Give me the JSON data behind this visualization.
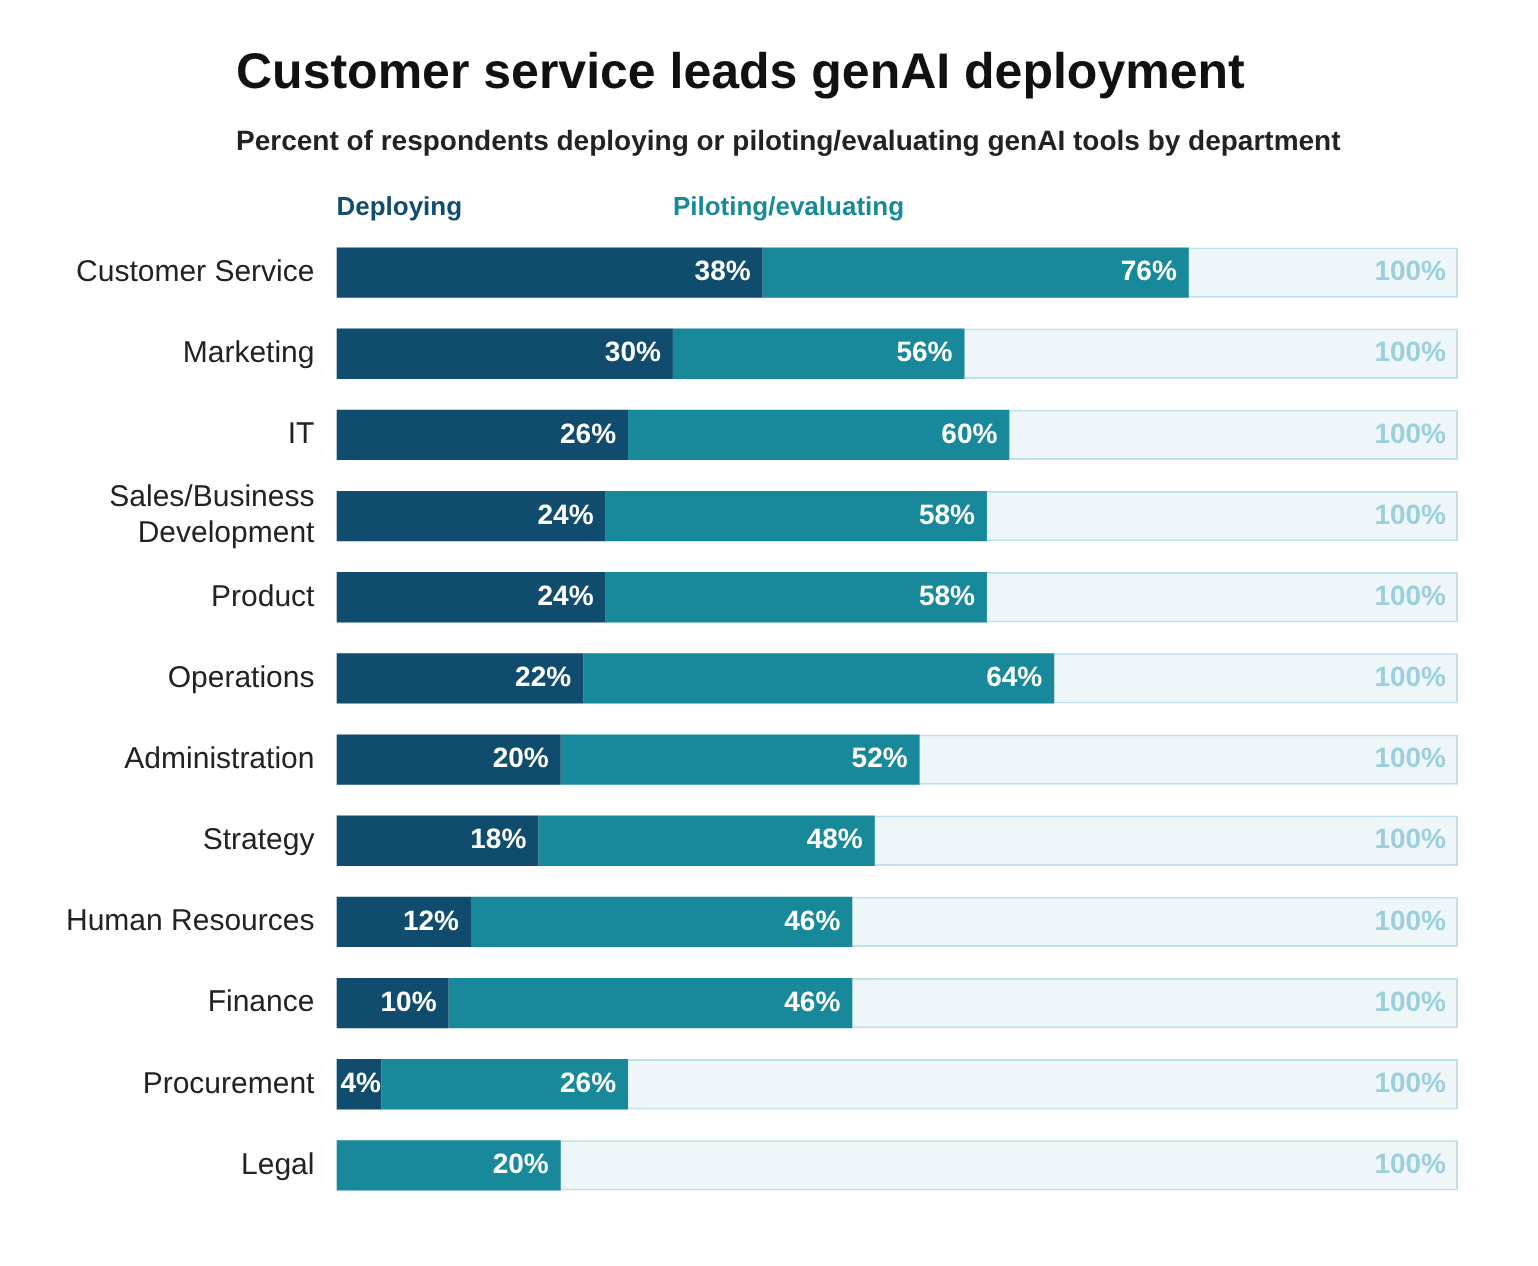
{
  "chart_data": {
    "type": "bar",
    "orientation": "horizontal",
    "stacked": true,
    "title": "Customer service leads genAI deployment",
    "subtitle": "Percent of respondents deploying or piloting/evaluating genAI tools by department",
    "categories": [
      "Customer Service",
      "Marketing",
      "IT",
      "Sales/Business Development",
      "Product",
      "Operations",
      "Administration",
      "Strategy",
      "Human Resources",
      "Finance",
      "Procurement",
      "Legal"
    ],
    "series": [
      {
        "name": "Deploying",
        "color": "#0f4c6e",
        "values": [
          38,
          30,
          26,
          24,
          24,
          22,
          20,
          18,
          12,
          10,
          4,
          0
        ],
        "value_labels": [
          "38%",
          "30%",
          "26%",
          "24%",
          "24%",
          "22%",
          "20%",
          "18%",
          "12%",
          "10%",
          "4%",
          null
        ]
      },
      {
        "name": "Piloting/evaluating",
        "color": "#17899b",
        "values": [
          38,
          26,
          34,
          34,
          34,
          42,
          32,
          30,
          34,
          36,
          22,
          20
        ]
      },
      {
        "color": "#eef6f9",
        "values": [
          24,
          44,
          40,
          42,
          42,
          36,
          48,
          52,
          54,
          54,
          74,
          80
        ]
      }
    ],
    "totals": [
      "100%",
      "100%",
      "100%",
      "100%",
      "100%",
      "100%",
      "100%",
      "100%",
      "100%",
      "100%",
      "100%",
      "100%"
    ],
    "annotations": [
      {
        "text": "76%",
        "x": 76,
        "y": "Customer Service"
      },
      {
        "text": "56%",
        "x": 56,
        "y": "Marketing"
      },
      {
        "text": "60%",
        "x": 60,
        "y": "IT"
      },
      {
        "text": "58%",
        "x": 58,
        "y": "Sales/Business Development"
      },
      {
        "text": "58%",
        "x": 58,
        "y": "Product"
      },
      {
        "text": "64%",
        "x": 64,
        "y": "Operations"
      },
      {
        "text": "52%",
        "x": 52,
        "y": "Administration"
      },
      {
        "text": "48%",
        "x": 48,
        "y": "Strategy"
      },
      {
        "text": "46%",
        "x": 46,
        "y": "Human Resources"
      },
      {
        "text": "46%",
        "x": 46,
        "y": "Finance"
      },
      {
        "text": "26%",
        "x": 26,
        "y": "Procurement"
      },
      {
        "text": "20%",
        "x": 20,
        "y": "Legal"
      }
    ],
    "legend": "top left",
    "grid": false
  }
}
